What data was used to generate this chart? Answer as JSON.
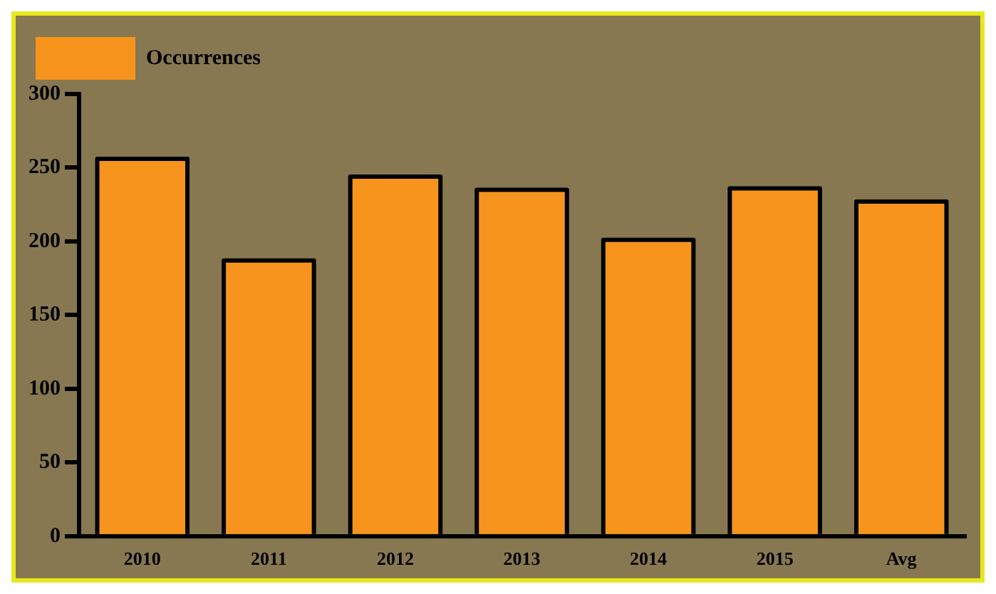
{
  "chart_data": {
    "type": "bar",
    "categories": [
      "2010",
      "2011",
      "2012",
      "2013",
      "2014",
      "2015",
      "Avg"
    ],
    "series": [
      {
        "name": "Occurrences",
        "color": "#f7941d",
        "values": [
          256,
          187,
          244,
          235,
          201,
          236,
          227
        ]
      }
    ],
    "ylim": [
      0,
      300
    ],
    "yticks": [
      0,
      50,
      100,
      150,
      200,
      250,
      300
    ],
    "grid": false,
    "legend": "top left"
  }
}
